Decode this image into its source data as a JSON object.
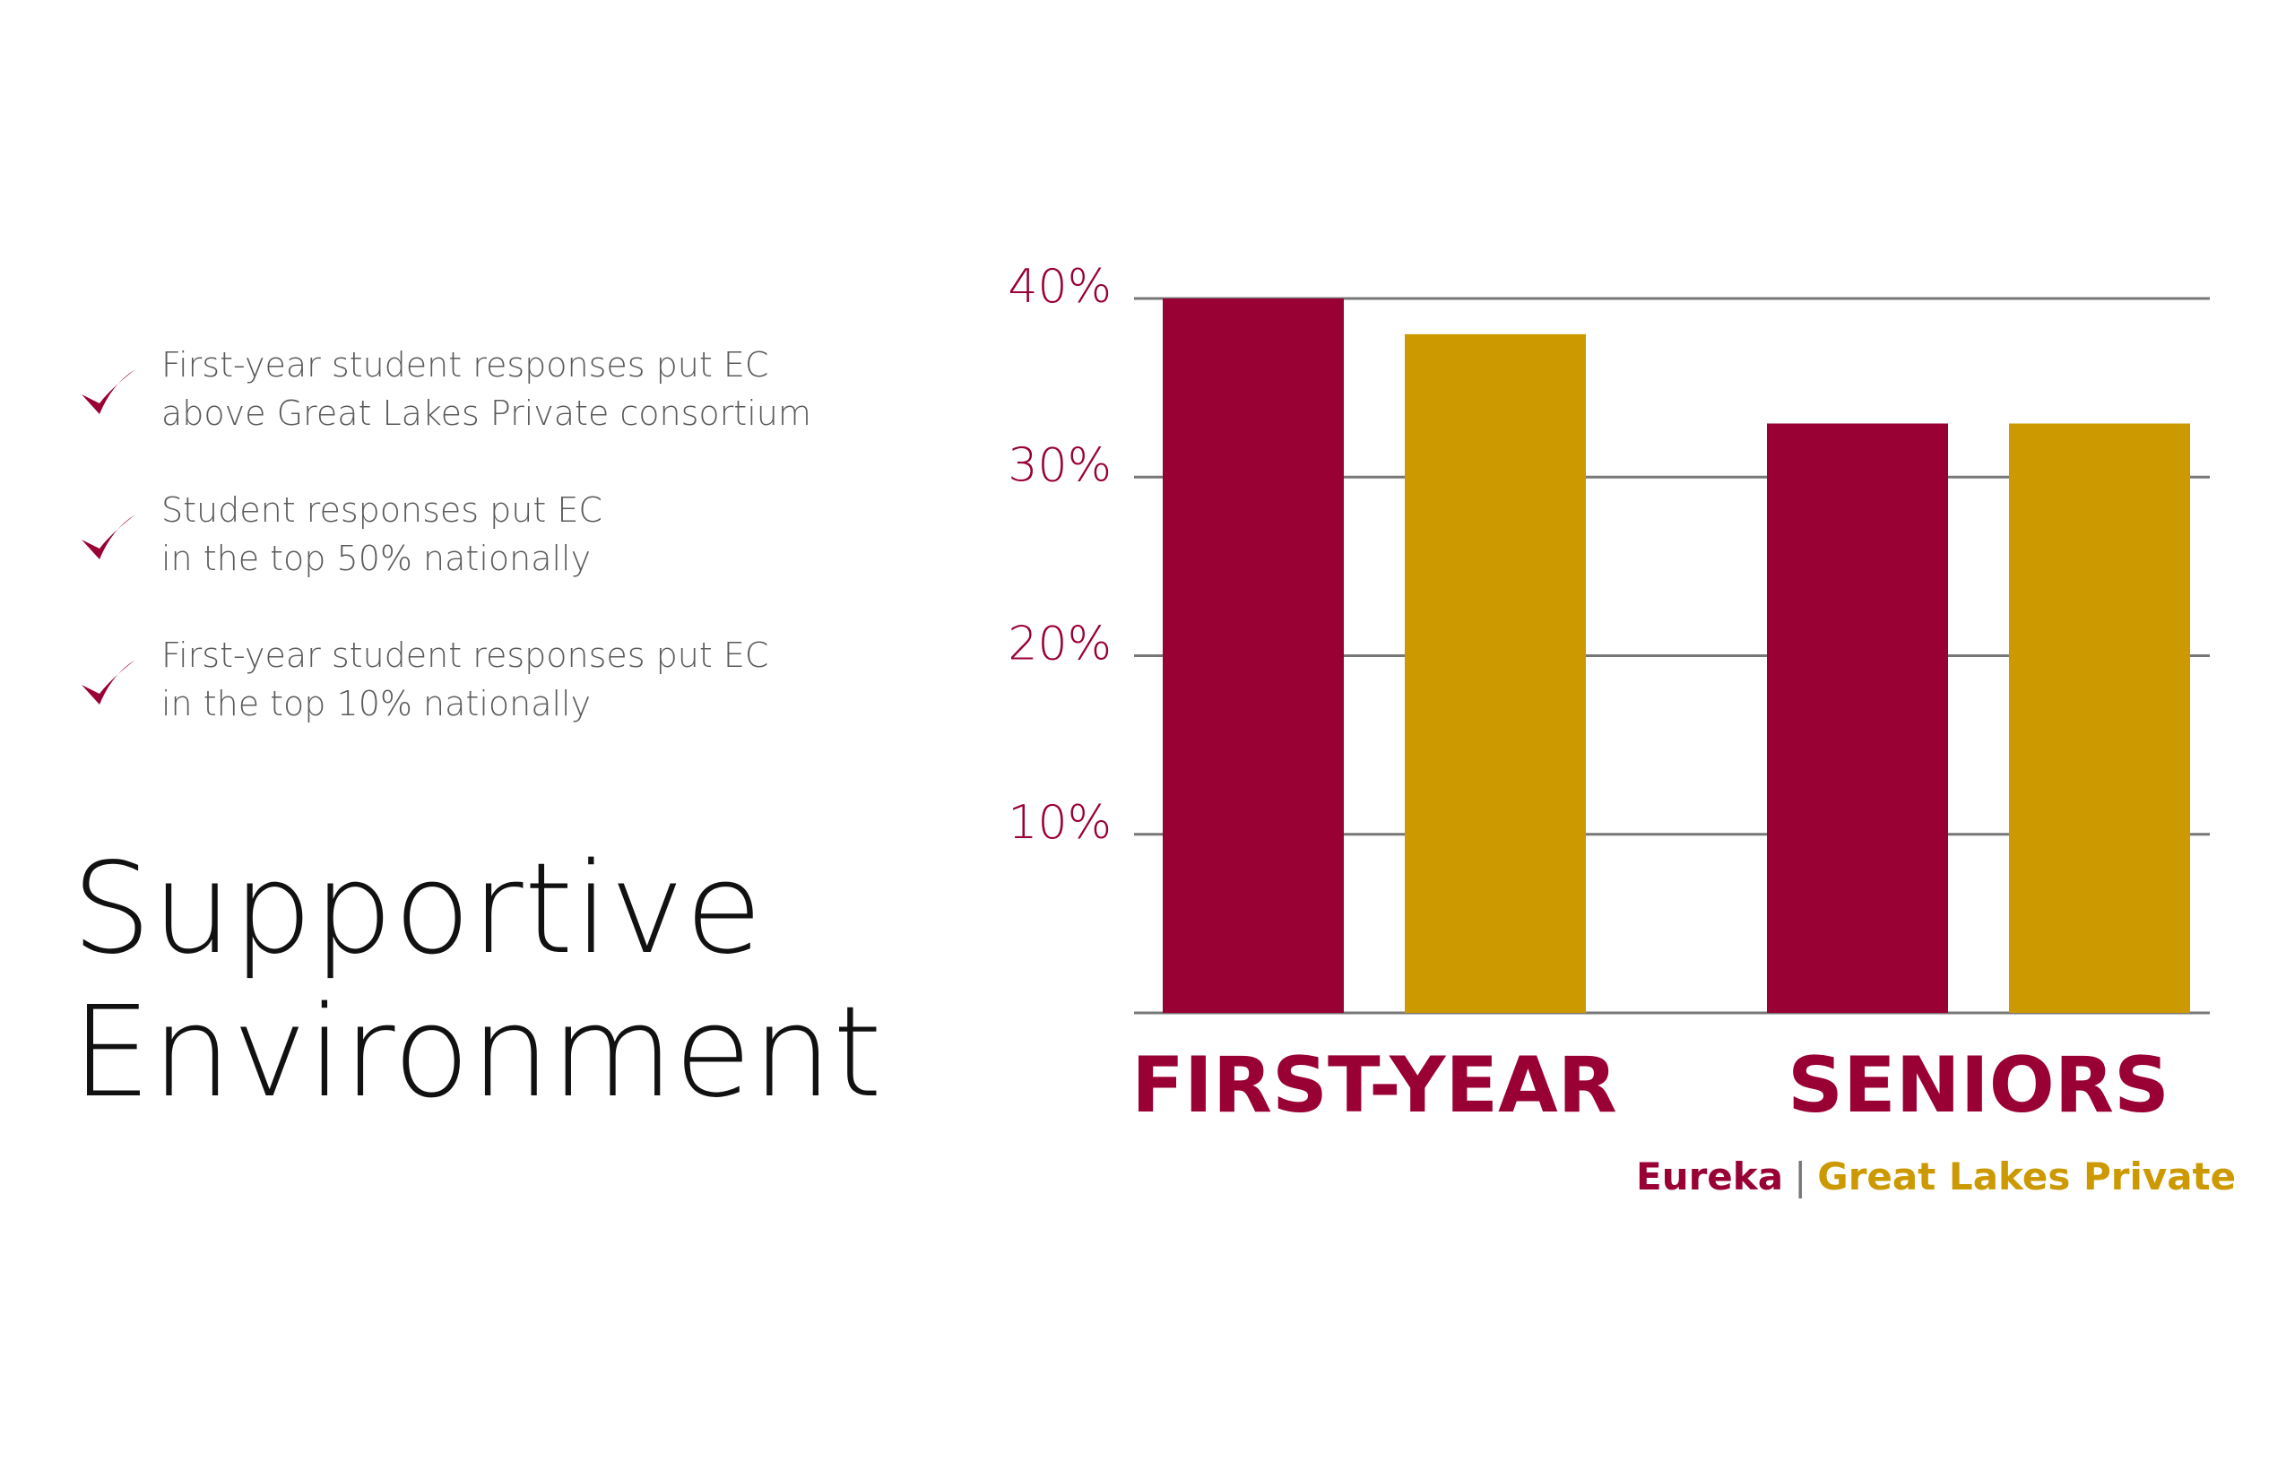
{
  "colors": {
    "primary": "#990033",
    "secondary": "#cc9900",
    "bullet_text": "#5a5a5a",
    "grid": "#777777"
  },
  "bullets": [
    {
      "icon": "checkmark-icon",
      "lines": [
        "First-year student responses put EC",
        "above Great Lakes Private consortium"
      ]
    },
    {
      "icon": "checkmark-icon",
      "lines": [
        "Student responses put EC",
        "in the top 50% nationally"
      ]
    },
    {
      "icon": "checkmark-icon",
      "lines": [
        "First-year student responses put EC",
        "in the top 10% nationally"
      ]
    }
  ],
  "headline": {
    "line1": "Supportive",
    "line2": "Environment"
  },
  "legend": {
    "series1": "Eureka",
    "separator": "|",
    "series2": "Great Lakes Private"
  },
  "chart_data": {
    "type": "bar",
    "categories": [
      "FIRST-YEAR",
      "SENIORS"
    ],
    "series": [
      {
        "name": "Eureka",
        "values": [
          40,
          33
        ]
      },
      {
        "name": "Great Lakes Private",
        "values": [
          38,
          33
        ]
      }
    ],
    "ylim": [
      0,
      40
    ],
    "yticks": [
      10,
      20,
      30,
      40
    ],
    "ytick_labels": [
      "10%",
      "20%",
      "30%",
      "40%"
    ],
    "grid": true,
    "legend_position": "bottom-right"
  }
}
